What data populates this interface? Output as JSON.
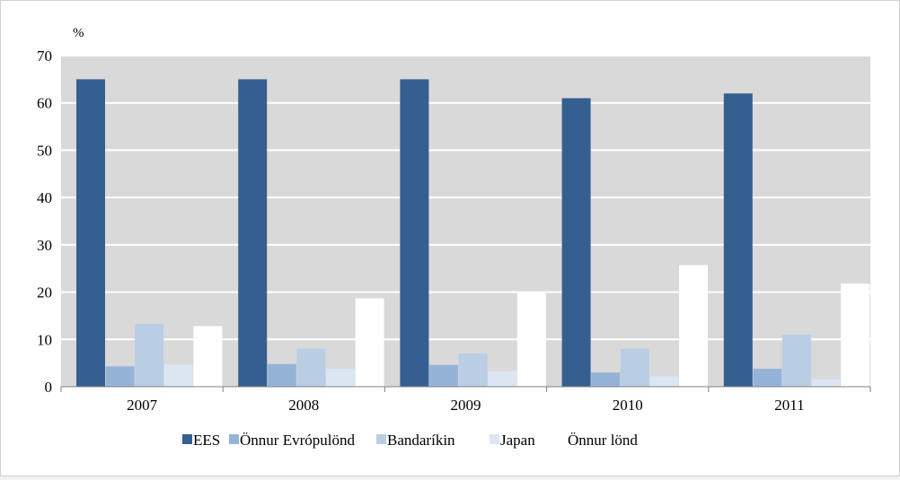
{
  "chart_data": {
    "type": "bar",
    "unit": "%",
    "categories": [
      "2007",
      "2008",
      "2009",
      "2010",
      "2011"
    ],
    "series": [
      {
        "name": "EES",
        "color": "#355f91",
        "values": [
          65,
          65,
          65,
          61,
          62
        ]
      },
      {
        "name": "Önnur Evrópulönd",
        "color": "#95b3d7",
        "values": [
          4.3,
          4.8,
          4.6,
          3.0,
          3.8
        ]
      },
      {
        "name": "Bandaríkin",
        "color": "#b9cde5",
        "values": [
          13.3,
          8.0,
          7.0,
          8.0,
          11.0
        ]
      },
      {
        "name": "Japan",
        "color": "#dce6f2",
        "values": [
          4.7,
          3.8,
          3.3,
          2.2,
          1.6
        ]
      },
      {
        "name": "Önnur lönd",
        "color": "#ffffff",
        "values": [
          12.8,
          18.7,
          20.0,
          25.7,
          21.8
        ]
      }
    ],
    "ylim": [
      0,
      70
    ],
    "yticks": [
      0,
      10,
      20,
      30,
      40,
      50,
      60,
      70
    ],
    "grid": true,
    "plot_background": "#d9d9d9",
    "legend_position": "bottom"
  }
}
